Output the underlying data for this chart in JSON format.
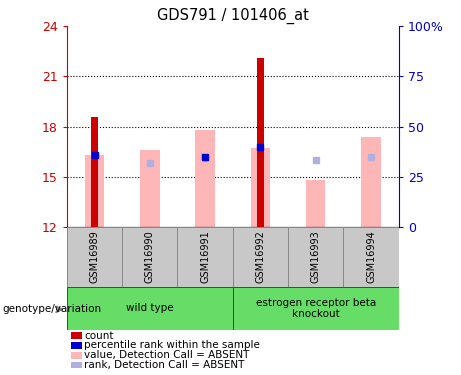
{
  "title": "GDS791 / 101406_at",
  "samples": [
    "GSM16989",
    "GSM16990",
    "GSM16991",
    "GSM16992",
    "GSM16993",
    "GSM16994"
  ],
  "ylim_left": [
    12,
    24
  ],
  "ylim_right": [
    0,
    100
  ],
  "yticks_left": [
    12,
    15,
    18,
    21,
    24
  ],
  "yticks_right": [
    0,
    25,
    50,
    75,
    100
  ],
  "ytick_labels_right": [
    "0",
    "25",
    "50",
    "75",
    "100%"
  ],
  "red_bars": [
    18.6,
    null,
    null,
    22.1,
    null,
    null
  ],
  "blue_markers": [
    16.3,
    null,
    16.2,
    16.8,
    null,
    null
  ],
  "pink_bars_top": [
    16.3,
    16.6,
    17.8,
    16.7,
    14.8,
    17.4
  ],
  "lavender_markers": [
    null,
    15.8,
    16.1,
    null,
    16.0,
    16.2
  ],
  "red_color": "#cc0000",
  "blue_color": "#0000cc",
  "pink_color": "#ffb6b6",
  "lavender_color": "#b0b0e0",
  "left_tick_color": "#cc0000",
  "right_tick_color": "#0000cc",
  "gray_color": "#c8c8c8",
  "green_color": "#66dd66",
  "legend_items": [
    {
      "color": "#cc0000",
      "label": "count"
    },
    {
      "color": "#0000cc",
      "label": "percentile rank within the sample"
    },
    {
      "color": "#ffb6b6",
      "label": "value, Detection Call = ABSENT"
    },
    {
      "color": "#b0b0e0",
      "label": "rank, Detection Call = ABSENT"
    }
  ],
  "genotype_label": "genotype/variation",
  "group_ranges": [
    [
      0,
      2
    ],
    [
      3,
      5
    ]
  ],
  "group_labels": [
    "wild type",
    "estrogen receptor beta\nknockout"
  ]
}
